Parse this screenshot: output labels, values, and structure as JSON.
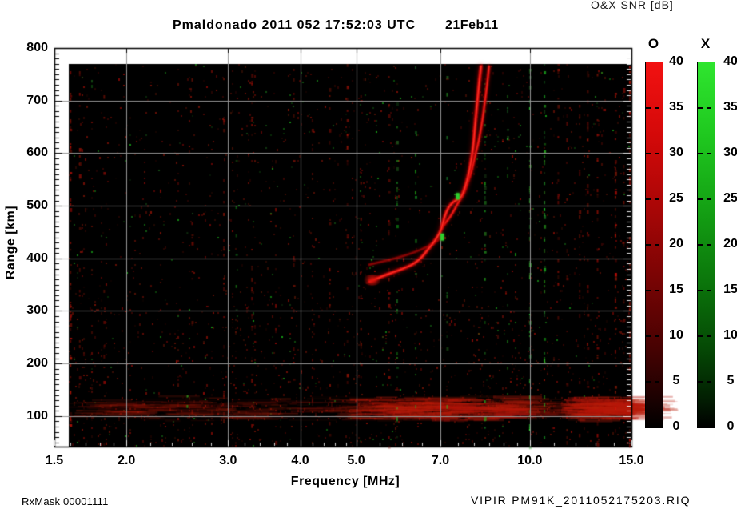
{
  "chart_data": {
    "type": "heatmap",
    "title": "Pmaldonado 2011 052 17:52:03 UTC",
    "date_label": "21Feb11",
    "xlabel": "Frequency [MHz]",
    "ylabel": "Range [km]",
    "legend_title": "O&X SNR [dB]",
    "x_scale": "log",
    "x_range": [
      1.5,
      15
    ],
    "y_range": [
      42,
      800
    ],
    "x_tick_values": [
      1.5,
      2,
      3,
      4,
      5,
      7,
      10,
      15
    ],
    "x_tick_labels": [
      "1.5",
      "2.0",
      "3.0",
      "4.0",
      "5.0",
      "7.0",
      "10.0",
      "15.0"
    ],
    "y_tick_values": [
      800,
      700,
      600,
      500,
      400,
      300,
      200,
      100
    ],
    "y_tick_labels": [
      "800",
      "700",
      "600",
      "500",
      "400",
      "300",
      "200",
      "100"
    ],
    "grid_x": [
      2,
      3,
      4,
      5,
      7,
      10
    ],
    "grid_y": [
      100,
      200,
      300,
      400,
      500,
      600,
      700
    ],
    "grid_color": "#969696",
    "plot_background": "#000000",
    "colorbars": [
      {
        "name": "O",
        "mode": "ordinary",
        "tick_labels": [
          "40",
          "35",
          "30",
          "25",
          "20",
          "15",
          "10",
          "5",
          "0"
        ],
        "gradient": [
          "#f21111",
          "#d40909",
          "#a90606",
          "#770404",
          "#480202",
          "#1c0101",
          "#000000"
        ]
      },
      {
        "name": "X",
        "mode": "extraordinary",
        "tick_labels": [
          "40",
          "35",
          "30",
          "25",
          "20",
          "15",
          "10",
          "5",
          "0"
        ],
        "gradient": [
          "#2fe52f",
          "#1fc81f",
          "#14a114",
          "#0b760b",
          "#054a05",
          "#021f02",
          "#000000"
        ]
      }
    ],
    "traces": {
      "o_mode_color": "#de0f0f",
      "x_mode_color": "#d60d0d",
      "o_mode": [
        [
          5.28,
          356
        ],
        [
          5.55,
          366
        ],
        [
          5.85,
          375
        ],
        [
          6.18,
          385
        ],
        [
          6.34,
          392
        ],
        [
          6.5,
          402
        ],
        [
          6.65,
          416
        ],
        [
          6.78,
          427
        ],
        [
          6.91,
          440
        ],
        [
          7.0,
          451
        ],
        [
          7.04,
          459
        ],
        [
          7.11,
          478
        ],
        [
          7.22,
          497
        ],
        [
          7.39,
          509
        ],
        [
          7.6,
          515
        ],
        [
          7.7,
          530
        ],
        [
          7.77,
          545
        ],
        [
          7.85,
          564
        ],
        [
          7.9,
          582
        ],
        [
          7.98,
          611
        ],
        [
          8.03,
          649
        ],
        [
          8.08,
          680
        ],
        [
          8.13,
          710
        ],
        [
          8.18,
          741
        ],
        [
          8.23,
          765
        ]
      ],
      "x_mode": [
        [
          7.04,
          459
        ],
        [
          7.19,
          471
        ],
        [
          7.34,
          485
        ],
        [
          7.48,
          502
        ],
        [
          7.6,
          515
        ],
        [
          7.7,
          527
        ],
        [
          7.79,
          543
        ],
        [
          7.9,
          561
        ],
        [
          7.98,
          579
        ],
        [
          8.05,
          599
        ],
        [
          8.13,
          616
        ],
        [
          8.2,
          637
        ],
        [
          8.28,
          664
        ],
        [
          8.35,
          695
        ],
        [
          8.43,
          729
        ],
        [
          8.48,
          756
        ],
        [
          8.5,
          765
        ]
      ],
      "cusp_branch": [
        [
          5.27,
          388
        ],
        [
          5.55,
          394
        ],
        [
          5.85,
          400
        ],
        [
          6.18,
          408
        ],
        [
          6.5,
          417
        ],
        [
          6.75,
          426
        ],
        [
          6.92,
          433
        ],
        [
          7.02,
          441
        ]
      ]
    },
    "green_marks": [
      {
        "freq": 7.05,
        "range_km": [
          434,
          447
        ]
      },
      {
        "freq": 7.5,
        "range_km": [
          512,
          524
        ]
      }
    ],
    "rfi_stripes": [
      {
        "freq": 1.6,
        "color": "red",
        "strength": 0.45
      },
      {
        "freq": 1.66,
        "color": "red",
        "strength": 0.2
      },
      {
        "freq": 1.83,
        "color": "red",
        "strength": 0.15
      },
      {
        "freq": 2.55,
        "color": "green",
        "strength": 0.12
      },
      {
        "freq": 2.6,
        "color": "red",
        "strength": 0.15
      },
      {
        "freq": 2.95,
        "color": "red",
        "strength": 0.22
      },
      {
        "freq": 3.1,
        "color": "green",
        "strength": 0.12
      },
      {
        "freq": 3.3,
        "color": "red",
        "strength": 0.18
      },
      {
        "freq": 3.63,
        "color": "red",
        "strength": 0.15
      },
      {
        "freq": 3.9,
        "color": "red",
        "strength": 0.18
      },
      {
        "freq": 4.2,
        "color": "red",
        "strength": 0.15
      },
      {
        "freq": 4.5,
        "color": "red",
        "strength": 0.2
      },
      {
        "freq": 4.83,
        "color": "red",
        "strength": 0.3
      },
      {
        "freq": 5.1,
        "color": "red",
        "strength": 0.25
      },
      {
        "freq": 5.7,
        "color": "red",
        "strength": 0.3
      },
      {
        "freq": 5.89,
        "color": "green",
        "strength": 0.22
      },
      {
        "freq": 6.34,
        "color": "green",
        "strength": 0.18
      },
      {
        "freq": 7.19,
        "color": "green",
        "strength": 0.15
      },
      {
        "freq": 8.36,
        "color": "green",
        "strength": 0.3
      },
      {
        "freq": 9.15,
        "color": "green",
        "strength": 0.22
      },
      {
        "freq": 10.0,
        "color": "green",
        "strength": 0.55
      },
      {
        "freq": 10.6,
        "color": "green",
        "strength": 0.4
      },
      {
        "freq": 11.2,
        "color": "red",
        "strength": 0.2
      },
      {
        "freq": 11.6,
        "color": "red",
        "strength": 0.15
      },
      {
        "freq": 12.2,
        "color": "red",
        "strength": 0.2
      },
      {
        "freq": 12.6,
        "color": "red",
        "strength": 0.28
      },
      {
        "freq": 13.1,
        "color": "red",
        "strength": 0.25
      },
      {
        "freq": 14.07,
        "color": "red",
        "strength": 0.5
      },
      {
        "freq": 14.55,
        "color": "red",
        "strength": 0.2
      },
      {
        "freq": 14.9,
        "color": "red",
        "strength": 0.45
      }
    ],
    "noise_band": {
      "range_km": [
        100,
        140
      ],
      "freq_span": [
        1.6,
        15
      ],
      "bright_segments": [
        [
          4.8,
          9.3
        ],
        [
          11.3,
          14.9
        ]
      ]
    },
    "annotations": {
      "rx_mask": "RxMask 00001111",
      "file_label": "VIPIR  PM91K_2011052175203.RIQ"
    }
  }
}
